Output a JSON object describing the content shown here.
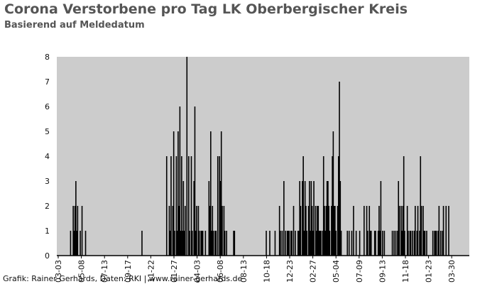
{
  "chart_data": {
    "type": "bar",
    "title": "Corona Verstorbene pro Tag LK Oberbergischer Kreis",
    "subtitle": "Basierend auf Meldedatum",
    "caption": "Grafik: Rainer Gerhards, Daten: RKI | www.rainer-gerhards.de",
    "xlabel": "",
    "ylabel": "",
    "ylim": [
      0,
      8
    ],
    "y_ticks": [
      "0",
      "1",
      "2",
      "3",
      "4",
      "5",
      "6",
      "7",
      "8"
    ],
    "x_tick_labels": [
      "03-03",
      "05-08",
      "07-13",
      "09-17",
      "11-22",
      "01-27",
      "04-03",
      "06-08",
      "08-13",
      "10-18",
      "12-23",
      "02-27",
      "05-04",
      "07-09",
      "09-13",
      "11-18",
      "01-23",
      "03-30"
    ],
    "grid": false,
    "background_color": "#cccccc",
    "bar_color": "#000000",
    "values": [
      0,
      0,
      0,
      0,
      0,
      0,
      0,
      0,
      0,
      0,
      0,
      0,
      0,
      0,
      0,
      1,
      0,
      0,
      2,
      1,
      2,
      3,
      1,
      2,
      0,
      0,
      1,
      0,
      2,
      0,
      0,
      0,
      1,
      0,
      0,
      0,
      0,
      0,
      0,
      0,
      0,
      0,
      0,
      0,
      0,
      0,
      0,
      0,
      0,
      0,
      0,
      0,
      0,
      0,
      0,
      0,
      0,
      0,
      0,
      0,
      0,
      0,
      0,
      0,
      0,
      0,
      0,
      0,
      0,
      0,
      0,
      0,
      0,
      0,
      0,
      0,
      0,
      0,
      0,
      0,
      0,
      0,
      0,
      0,
      0,
      0,
      0,
      0,
      0,
      0,
      0,
      0,
      0,
      0,
      0,
      0,
      1,
      0,
      0,
      0,
      0,
      0,
      0,
      0,
      0,
      0,
      0,
      0,
      0,
      0,
      0,
      0,
      0,
      0,
      0,
      0,
      0,
      0,
      0,
      0,
      0,
      0,
      0,
      0,
      4,
      0,
      0,
      2,
      1,
      4,
      0,
      2,
      5,
      1,
      0,
      4,
      1,
      5,
      2,
      6,
      1,
      4,
      1,
      3,
      1,
      2,
      0,
      8,
      0,
      4,
      1,
      0,
      4,
      1,
      0,
      3,
      6,
      1,
      2,
      0,
      2,
      1,
      0,
      1,
      1,
      1,
      0,
      0,
      1,
      0,
      0,
      0,
      3,
      2,
      5,
      1,
      2,
      1,
      0,
      1,
      1,
      0,
      4,
      0,
      4,
      3,
      5,
      2,
      0,
      2,
      1,
      0,
      1,
      0,
      0,
      0,
      0,
      0,
      0,
      0,
      1,
      1,
      0,
      0,
      0,
      0,
      0,
      0,
      0,
      0,
      0,
      0,
      0,
      0,
      0,
      0,
      0,
      0,
      0,
      0,
      0,
      0,
      0,
      0,
      0,
      0,
      0,
      0,
      0,
      0,
      0,
      0,
      0,
      0,
      0,
      0,
      0,
      1,
      0,
      0,
      0,
      1,
      0,
      0,
      0,
      0,
      0,
      1,
      0,
      0,
      0,
      0,
      2,
      1,
      0,
      1,
      0,
      3,
      0,
      1,
      0,
      1,
      1,
      1,
      0,
      1,
      1,
      0,
      2,
      0,
      1,
      0,
      0,
      1,
      1,
      3,
      2,
      0,
      3,
      4,
      1,
      3,
      2,
      1,
      0,
      2,
      3,
      1,
      3,
      2,
      1,
      3,
      0,
      2,
      1,
      2,
      2,
      1,
      1,
      1,
      0,
      1,
      4,
      2,
      1,
      2,
      3,
      3,
      2,
      1,
      0,
      2,
      4,
      5,
      2,
      2,
      1,
      0,
      2,
      4,
      7,
      3,
      1,
      0,
      0,
      0,
      0,
      0,
      0,
      1,
      0,
      1,
      0,
      0,
      1,
      0,
      2,
      0,
      0,
      1,
      0,
      0,
      0,
      1,
      0,
      0,
      0,
      0,
      2,
      0,
      0,
      2,
      1,
      0,
      2,
      1,
      1,
      0,
      0,
      0,
      1,
      1,
      0,
      0,
      1,
      2,
      1,
      3,
      0,
      1,
      0,
      1,
      0,
      0,
      0,
      0,
      0,
      0,
      0,
      0,
      1,
      0,
      1,
      0,
      1,
      0,
      1,
      3,
      2,
      0,
      2,
      1,
      2,
      4,
      1,
      0,
      0,
      2,
      1,
      0,
      1,
      1,
      0,
      1,
      0,
      1,
      2,
      0,
      1,
      2,
      0,
      1,
      4,
      2,
      0,
      2,
      1,
      1,
      0,
      1,
      0,
      0,
      0,
      0,
      0,
      0,
      1,
      0,
      1,
      1,
      1,
      0,
      1,
      2,
      0,
      1,
      0,
      1,
      2,
      0,
      0,
      2,
      0,
      0,
      2,
      0,
      0,
      0,
      0,
      0,
      0,
      0,
      0,
      0,
      0,
      0,
      0,
      0,
      0,
      0,
      0,
      0,
      0,
      0,
      0,
      0,
      0,
      0
    ]
  }
}
